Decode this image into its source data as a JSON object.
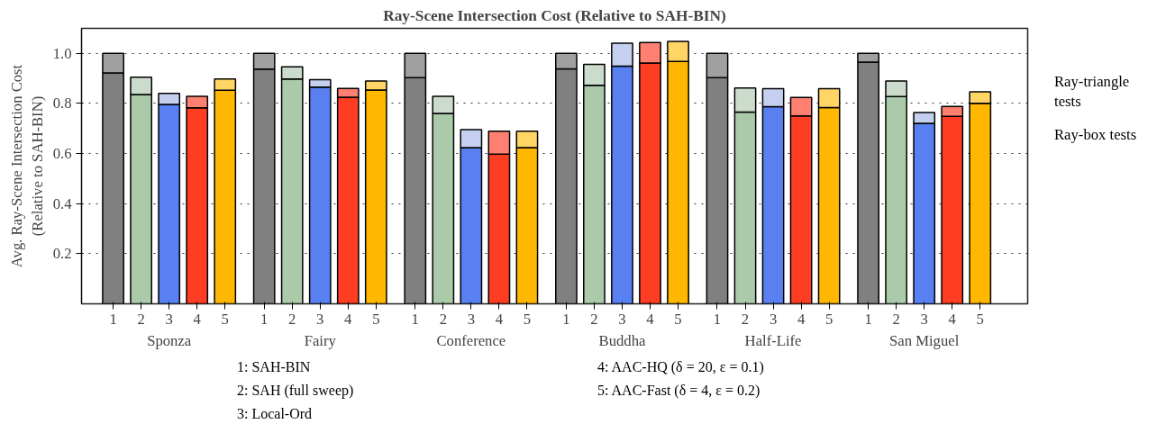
{
  "chart_data": {
    "type": "bar",
    "stacked": true,
    "title": "Ray-Scene Intersection Cost (Relative to SAH-BIN)",
    "ylabel": "Avg. Ray-Scene Intersection Cost\n(Relative to SAH-BIN)",
    "categories": [
      "1",
      "2",
      "3",
      "4",
      "5",
      "1",
      "2",
      "3",
      "4",
      "5",
      "1",
      "2",
      "3",
      "4",
      "5",
      "1",
      "2",
      "3",
      "4",
      "5",
      "1",
      "2",
      "3",
      "4",
      "5",
      "1",
      "2",
      "3",
      "4",
      "5"
    ],
    "series": [
      {
        "name": "Ray-box tests",
        "colors": [
          "#808080",
          "#aacaaa",
          "#5880f0",
          "#ff3d22",
          "#ffb700",
          "#808080",
          "#aacaaa",
          "#5880f0",
          "#ff3d22",
          "#ffb700",
          "#808080",
          "#aacaaa",
          "#5880f0",
          "#ff3d22",
          "#ffb700",
          "#808080",
          "#aacaaa",
          "#5880f0",
          "#ff3d22",
          "#ffb700",
          "#808080",
          "#aacaaa",
          "#5880f0",
          "#ff3d22",
          "#ffb700",
          "#808080",
          "#aacaaa",
          "#5880f0",
          "#ff3d22",
          "#ffb700"
        ],
        "values": [
          0.922,
          0.836,
          0.796,
          0.783,
          0.853,
          0.937,
          0.898,
          0.865,
          0.825,
          0.854,
          0.903,
          0.76,
          0.624,
          0.598,
          0.624,
          0.938,
          0.873,
          0.949,
          0.962,
          0.968,
          0.903,
          0.766,
          0.787,
          0.75,
          0.784,
          0.965,
          0.828,
          0.721,
          0.749,
          0.801
        ]
      },
      {
        "name": "Ray-triangle tests",
        "colors": [
          "#a0a0a0",
          "#ccdccc",
          "#c5d0f0",
          "#ff8070",
          "#ffd666",
          "#a0a0a0",
          "#ccdccc",
          "#c5d0f0",
          "#ff8070",
          "#ffd666",
          "#a0a0a0",
          "#ccdccc",
          "#c5d0f0",
          "#ff8070",
          "#ffd666",
          "#a0a0a0",
          "#ccdccc",
          "#c5d0f0",
          "#ff8070",
          "#ffd666",
          "#a0a0a0",
          "#ccdccc",
          "#c5d0f0",
          "#ff8070",
          "#ffd666",
          "#a0a0a0",
          "#ccdccc",
          "#c5d0f0",
          "#ff8070",
          "#ffd666"
        ],
        "values": [
          0.078,
          0.069,
          0.044,
          0.046,
          0.045,
          0.063,
          0.048,
          0.03,
          0.035,
          0.036,
          0.097,
          0.069,
          0.072,
          0.091,
          0.065,
          0.062,
          0.083,
          0.092,
          0.081,
          0.08,
          0.097,
          0.096,
          0.072,
          0.074,
          0.075,
          0.035,
          0.062,
          0.043,
          0.039,
          0.046
        ]
      }
    ],
    "ylim": [
      0,
      1.1
    ],
    "yticks": [
      0.2,
      0.4,
      0.6,
      0.8,
      {
        "value": 1.0,
        "label": "1.0"
      }
    ],
    "grid": "y",
    "annotations": [
      "Sponza",
      "Fairy",
      "Conference",
      "Buddha",
      "Half-Life",
      "San Miguel",
      "1: SAH-BIN",
      "2: SAH (full sweep)",
      "3: Local-Ord",
      "4: AAC-HQ (δ = 20, ε = 0.1)",
      "5: AAC-Fast (δ = 4, ε = 0.2)"
    ]
  }
}
